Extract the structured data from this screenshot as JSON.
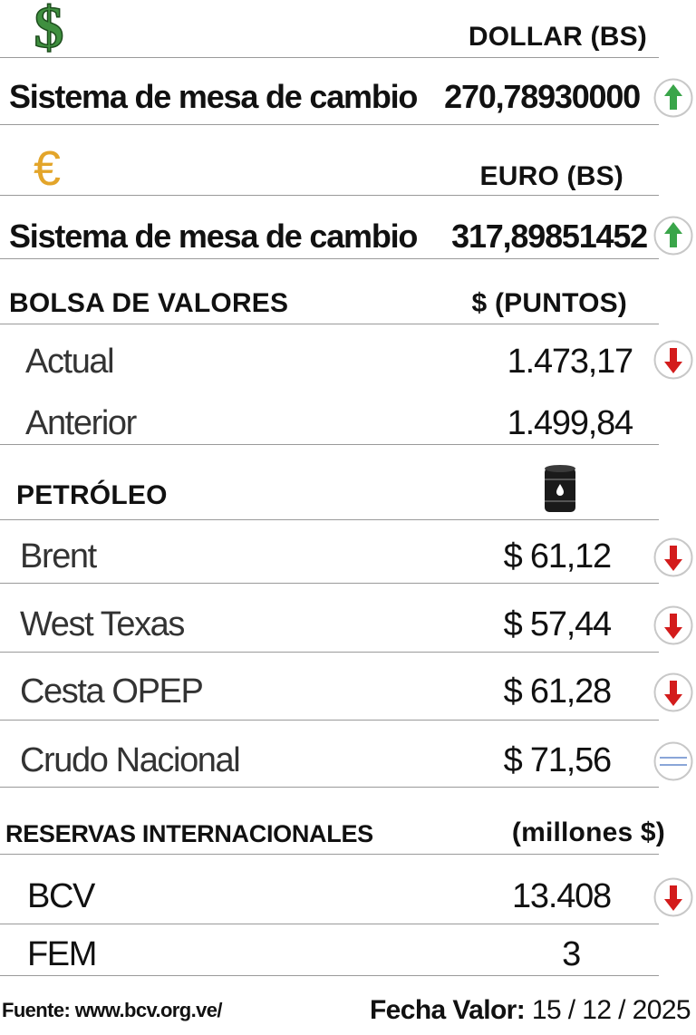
{
  "dollar": {
    "symbol": "$",
    "header": "DOLLAR (BS)",
    "label": "Sistema de mesa de cambio",
    "value": "270,78930000",
    "trend": "up"
  },
  "euro": {
    "symbol": "€",
    "header": "EURO (BS)",
    "label": "Sistema de mesa de cambio",
    "value": "317,89851452",
    "trend": "up"
  },
  "bolsa": {
    "title": "BOLSA DE VALORES",
    "unit": "$ (PUNTOS)",
    "rows": [
      {
        "label": "Actual",
        "value": "1.473,17",
        "trend": "down"
      },
      {
        "label": "Anterior",
        "value": "1.499,84",
        "trend": "none"
      }
    ]
  },
  "petroleo": {
    "title": "PETRÓLEO",
    "icon": "oil-barrel-icon",
    "rows": [
      {
        "label": "Brent",
        "value": "$ 61,12",
        "trend": "down"
      },
      {
        "label": "West Texas",
        "value": "$ 57,44",
        "trend": "down"
      },
      {
        "label": "Cesta OPEP",
        "value": "$ 61,28",
        "trend": "down"
      },
      {
        "label": "Crudo Nacional",
        "value": "$ 71,56",
        "trend": "equal"
      }
    ]
  },
  "reservas": {
    "title": "RESERVAS INTERNACIONALES",
    "unit": "(millones $)",
    "rows": [
      {
        "label": "BCV",
        "value": "13.408",
        "trend": "down"
      },
      {
        "label": "FEM",
        "value": "3",
        "trend": "none"
      }
    ]
  },
  "footer": {
    "source": "Fuente: www.bcv.org.ve/",
    "date_label": "Fecha Valor:",
    "date_value": "15 / 12 / 2025"
  },
  "colors": {
    "up": "#3aa54a",
    "down": "#d31c1c",
    "dollar_green": "#3f8f3f",
    "euro_gold": "#e3a52a",
    "divider": "#9a9a9a"
  }
}
